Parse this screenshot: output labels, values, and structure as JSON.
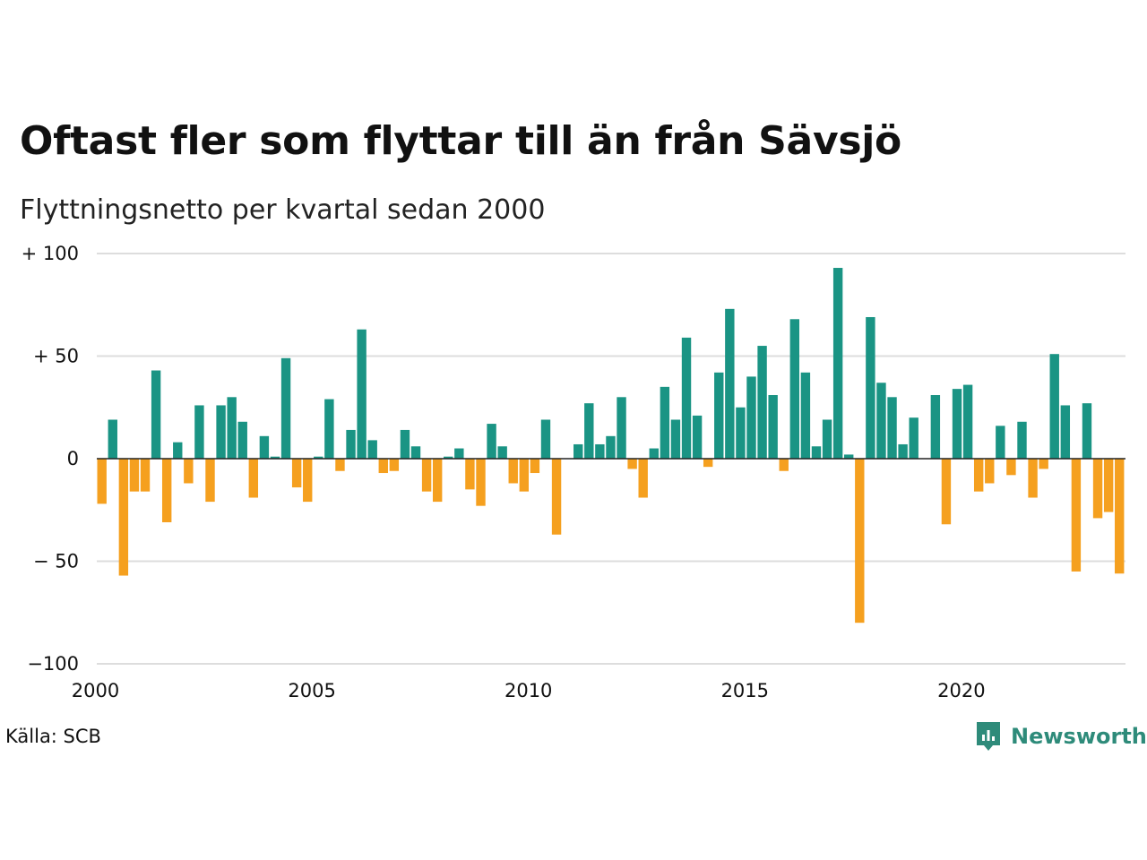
{
  "title": "Oftast fler som flyttar till än från Sävsjö",
  "subtitle": "Flyttningsnetto per kvartal sedan 2000",
  "source": "Källa: SCB",
  "brand": {
    "name": "Newsworthy",
    "icon": "newsworthy-logo-icon",
    "color": "#2e8b7a"
  },
  "colors": {
    "positive": "#1a9484",
    "negative": "#f5a01f",
    "grid": "#dddddd",
    "zero_line": "#222222"
  },
  "chart_data": {
    "type": "bar",
    "title": "Oftast fler som flyttar till än från Sävsjö",
    "subtitle": "Flyttningsnetto per kvartal sedan 2000",
    "xlabel": "",
    "ylabel": "",
    "ylim": [
      -100,
      100
    ],
    "yticks": [
      100,
      50,
      0,
      -50,
      -100
    ],
    "ytick_labels": [
      "+ 100",
      "+  50",
      "0",
      "− 50",
      "−100"
    ],
    "xticks": [
      2000,
      2005,
      2010,
      2015,
      2020
    ],
    "xtick_labels": [
      "2000",
      "2005",
      "2010",
      "2015",
      "2020"
    ],
    "grid": true,
    "x_start": "2000Q1",
    "values": [
      -22,
      19,
      -57,
      -16,
      -16,
      43,
      -31,
      8,
      -12,
      26,
      -21,
      26,
      30,
      18,
      -19,
      11,
      1,
      49,
      -14,
      -21,
      1,
      29,
      -6,
      14,
      63,
      9,
      -7,
      -6,
      14,
      6,
      -16,
      -21,
      1,
      5,
      -15,
      -23,
      17,
      6,
      -12,
      -16,
      -7,
      19,
      -37,
      0,
      7,
      27,
      7,
      11,
      30,
      -5,
      -19,
      5,
      35,
      19,
      59,
      21,
      -4,
      42,
      73,
      25,
      40,
      55,
      31,
      -6,
      68,
      42,
      6,
      19,
      93,
      2,
      -80,
      69,
      37,
      30,
      7,
      20,
      0,
      31,
      -32,
      34,
      36,
      -16,
      -12,
      16,
      -8,
      18,
      -19,
      -5,
      51,
      26,
      -55,
      27,
      -29,
      -26,
      -56
    ]
  }
}
